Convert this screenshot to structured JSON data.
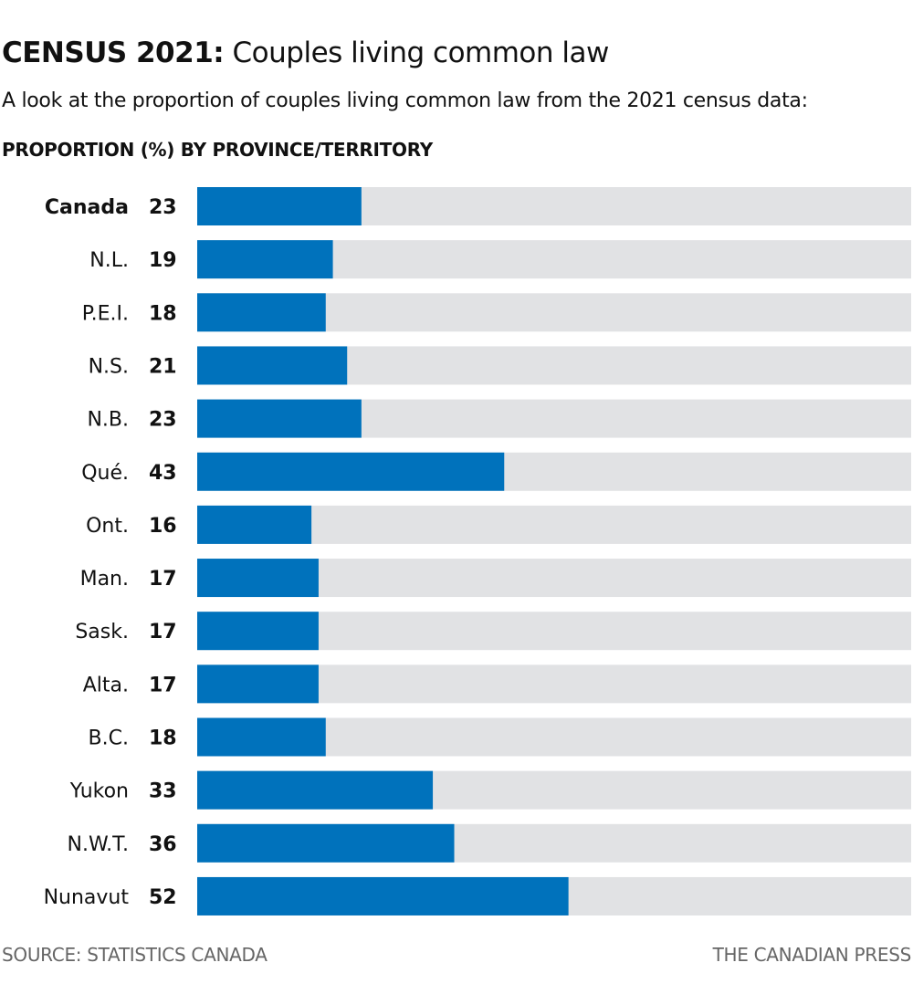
{
  "header": {
    "title_bold": "CENSUS 2021:",
    "title_rest": "Couples living common law",
    "subtitle": "A look at the proportion of couples living common law from the 2021 census data:",
    "section_label": "PROPORTION (%) BY PROVINCE/TERRITORY"
  },
  "chart_data": {
    "type": "bar",
    "orientation": "horizontal",
    "title": "PROPORTION (%) BY PROVINCE/TERRITORY",
    "categories": [
      "Canada",
      "N.L.",
      "P.E.I.",
      "N.S.",
      "N.B.",
      "Qué.",
      "Ont.",
      "Man.",
      "Sask.",
      "Alta.",
      "B.C.",
      "Yukon",
      "N.W.T.",
      "Nunavut"
    ],
    "values": [
      23,
      19,
      18,
      21,
      23,
      43,
      16,
      17,
      17,
      17,
      18,
      33,
      36,
      52
    ],
    "bold_categories": [
      "Canada"
    ],
    "xlim": [
      0,
      100
    ],
    "xlabel": "",
    "ylabel": "",
    "grid": false,
    "colors": {
      "bar": "#0072BC",
      "track": "#E1E2E4"
    }
  },
  "footer": {
    "source": "SOURCE: STATISTICS CANADA",
    "credit": "THE CANADIAN PRESS"
  }
}
